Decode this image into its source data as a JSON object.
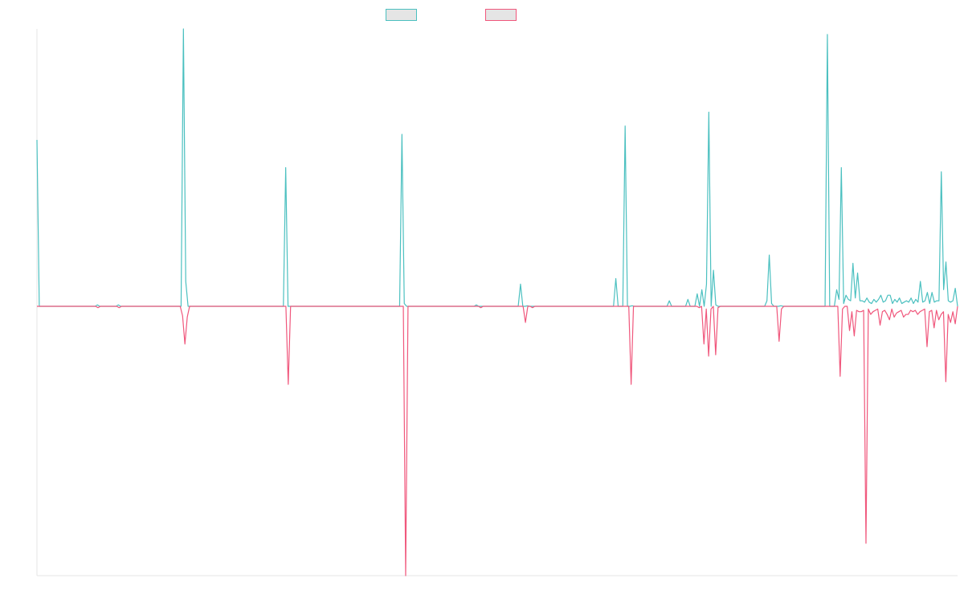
{
  "chart_data": {
    "type": "line",
    "title": "",
    "xlabel": "",
    "ylabel": "",
    "grid": false,
    "legend_position": "top",
    "ylim": [
      -1.0,
      1.0
    ],
    "series": [
      {
        "color": "#4bc0c0",
        "values": [
          0.6,
          0,
          0,
          0,
          0,
          0,
          0,
          0,
          0,
          0,
          0,
          0,
          0,
          0,
          0,
          0,
          0,
          0,
          0,
          0,
          0,
          0,
          0,
          0,
          0,
          0,
          0.005,
          0,
          0,
          0,
          0,
          0,
          0,
          0,
          0,
          0.005,
          0,
          0,
          0,
          0,
          0,
          0,
          0,
          0,
          0,
          0,
          0,
          0,
          0,
          0,
          0,
          0,
          0,
          0,
          0,
          0,
          0,
          0,
          0,
          0,
          0,
          0,
          0,
          1.0,
          0.09,
          0,
          0,
          0,
          0,
          0,
          0,
          0,
          0,
          0,
          0,
          0,
          0,
          0,
          0,
          0,
          0,
          0,
          0,
          0,
          0,
          0,
          0,
          0,
          0,
          0,
          0,
          0,
          0,
          0,
          0,
          0,
          0,
          0,
          0,
          0,
          0,
          0,
          0,
          0,
          0,
          0,
          0,
          0.5,
          0,
          0,
          0,
          0,
          0,
          0,
          0,
          0,
          0,
          0,
          0,
          0,
          0,
          0,
          0,
          0,
          0,
          0,
          0,
          0,
          0,
          0,
          0,
          0,
          0,
          0,
          0,
          0,
          0,
          0,
          0,
          0,
          0,
          0,
          0,
          0,
          0,
          0,
          0,
          0,
          0,
          0,
          0,
          0,
          0,
          0,
          0,
          0,
          0,
          0.62,
          0.01,
          0,
          0,
          0,
          0,
          0,
          0,
          0,
          0,
          0,
          0,
          0,
          0,
          0,
          0,
          0,
          0,
          0,
          0,
          0,
          0,
          0,
          0,
          0,
          0,
          0,
          0,
          0,
          0,
          0,
          0,
          0.005,
          0,
          0,
          0,
          0,
          0,
          0,
          0,
          0,
          0,
          0,
          0,
          0,
          0,
          0,
          0,
          0,
          0,
          0,
          0.08,
          0,
          0,
          0.002,
          0,
          0,
          0,
          0,
          0,
          0,
          0,
          0,
          0,
          0,
          0,
          0,
          0,
          0,
          0,
          0,
          0,
          0,
          0,
          0,
          0,
          0,
          0,
          0,
          0,
          0,
          0,
          0,
          0,
          0,
          0,
          0,
          0,
          0,
          0,
          0,
          0,
          0.1,
          0,
          0,
          0,
          0.65,
          0,
          0,
          0.002,
          0,
          0,
          0,
          0,
          0,
          0,
          0,
          0,
          0,
          0,
          0,
          0,
          0,
          0,
          0,
          0.02,
          0,
          0,
          0,
          0,
          0,
          0,
          0,
          0.025,
          0,
          0,
          0,
          0.045,
          0,
          0.06,
          0,
          0.08,
          0.7,
          0,
          0.13,
          0.005,
          0,
          0,
          0,
          0,
          0,
          0,
          0,
          0,
          0,
          0,
          0,
          0,
          0,
          0,
          0,
          0,
          0,
          0,
          0,
          0,
          0,
          0.02,
          0.185,
          0.01,
          0,
          0,
          0,
          0.002,
          0,
          0,
          0,
          0,
          0,
          0,
          0,
          0,
          0,
          0,
          0,
          0,
          0,
          0,
          0,
          0,
          0,
          0,
          0,
          0.98,
          0,
          0,
          0,
          0.06,
          0.025,
          0.5,
          0.01,
          0.04,
          0.025,
          0.02,
          0.155,
          0.03,
          0.12,
          0.02,
          0.02,
          0.015,
          0.03,
          0.015,
          0.01,
          0.025,
          0.015,
          0.025,
          0.04,
          0.015,
          0.02,
          0.04,
          0.04,
          0.01,
          0.025,
          0.015,
          0.03,
          0.01,
          0.015,
          0.02,
          0.015,
          0.03,
          0.01,
          0.025,
          0.015,
          0.09,
          0.015,
          0.02,
          0.05,
          0.01,
          0.05,
          0.015,
          0.02,
          0.02,
          0.485,
          0.06,
          0.16,
          0.02,
          0.015,
          0.02,
          0.065,
          0
        ]
      },
      {
        "color": "#f0577c",
        "values": [
          0,
          0,
          0,
          0,
          0,
          0,
          0,
          0,
          0,
          0,
          0,
          0,
          0,
          0,
          0,
          0,
          0,
          0,
          0,
          0,
          0,
          0,
          0,
          0,
          0,
          0,
          -0.005,
          0,
          0,
          0,
          0,
          0,
          0,
          0,
          0,
          -0.005,
          0,
          0,
          0,
          0,
          0,
          0,
          0,
          0,
          0,
          0,
          0,
          0,
          0,
          0,
          0,
          0,
          0,
          0,
          0,
          0,
          0,
          0,
          0,
          0,
          0,
          0,
          -0.035,
          -0.14,
          -0.04,
          0,
          0,
          0,
          0,
          0,
          0,
          0,
          0,
          0,
          0,
          0,
          0,
          0,
          0,
          0,
          0,
          0,
          0,
          0,
          0,
          0,
          0,
          0,
          0,
          0,
          0,
          0,
          0,
          0,
          0,
          0,
          0,
          0,
          0,
          0,
          0,
          0,
          0,
          0,
          0,
          0,
          0,
          -0.29,
          0,
          0,
          0,
          0,
          0,
          0,
          0,
          0,
          0,
          0,
          0,
          0,
          0,
          0,
          0,
          0,
          0,
          0,
          0,
          0,
          0,
          0,
          0,
          0,
          0,
          0,
          0,
          0,
          0,
          0,
          0,
          0,
          0,
          0,
          0,
          0,
          0,
          0,
          0,
          0,
          0,
          0,
          0,
          0,
          0,
          0,
          0,
          0,
          0,
          -1.0,
          0,
          0,
          0,
          0,
          0,
          0,
          0,
          0,
          0,
          0,
          0,
          0,
          0,
          0,
          0,
          0,
          0,
          0,
          0,
          0,
          0,
          0,
          0,
          0,
          0,
          0,
          0,
          0,
          0,
          0,
          0,
          -0.005,
          0,
          0,
          0,
          0,
          0,
          0,
          0,
          0,
          0,
          0,
          0,
          0,
          0,
          0,
          0,
          0,
          0,
          0,
          -0.06,
          0,
          0,
          -0.005,
          0,
          0,
          0,
          0,
          0,
          0,
          0,
          0,
          0,
          0,
          0,
          0,
          0,
          0,
          0,
          0,
          0,
          0,
          0,
          0,
          0,
          0,
          0,
          0,
          0,
          0,
          0,
          0,
          0,
          0,
          0,
          0,
          0,
          0,
          0,
          0,
          0,
          0,
          0,
          0,
          0,
          -0.29,
          0,
          0,
          0,
          0,
          0,
          0,
          0,
          0,
          0,
          0,
          0,
          0,
          0,
          0,
          0,
          0,
          0,
          0,
          0,
          0,
          0,
          0,
          0,
          0,
          0,
          0,
          0,
          0,
          -0.005,
          0,
          -0.14,
          -0.01,
          -0.185,
          -0.01,
          0,
          -0.18,
          -0.005,
          0,
          0,
          0,
          0,
          0,
          0,
          0,
          0,
          0,
          0,
          0,
          0,
          0,
          0,
          0,
          0,
          0,
          0,
          0,
          0,
          0,
          0,
          0,
          0,
          0,
          -0.13,
          -0.01,
          0,
          0,
          0,
          0,
          0,
          0,
          0,
          0,
          0,
          0,
          0,
          0,
          0,
          0,
          0,
          0,
          0,
          0,
          0,
          0,
          0,
          0,
          0,
          0,
          -0.26,
          -0.01,
          0,
          0,
          -0.09,
          -0.02,
          -0.11,
          -0.015,
          -0.02,
          -0.02,
          -0.015,
          -0.88,
          -0.01,
          -0.03,
          -0.02,
          -0.015,
          -0.01,
          -0.07,
          -0.02,
          -0.015,
          -0.03,
          -0.05,
          -0.01,
          -0.04,
          -0.025,
          -0.02,
          -0.015,
          -0.04,
          -0.03,
          -0.03,
          -0.015,
          -0.02,
          -0.015,
          -0.03,
          -0.02,
          -0.015,
          -0.01,
          -0.15,
          -0.02,
          -0.015,
          -0.08,
          -0.015,
          -0.05,
          -0.03,
          -0.02,
          -0.28,
          -0.03,
          -0.06,
          -0.02,
          -0.065,
          0
        ]
      }
    ]
  }
}
